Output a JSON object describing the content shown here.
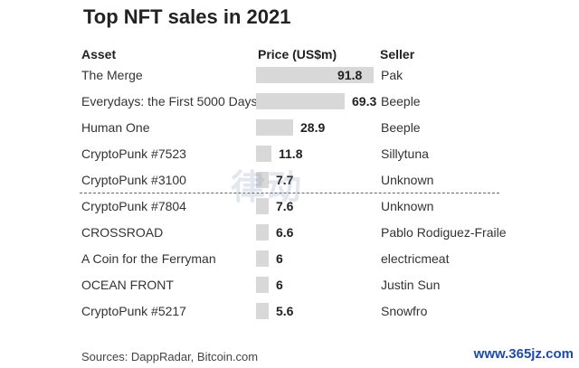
{
  "chart_data": {
    "type": "bar",
    "title": "Top NFT sales in 2021",
    "columns": {
      "asset": "Asset",
      "price": "Price (US$m)",
      "seller": "Seller"
    },
    "categories": [
      "The Merge",
      "Everydays: the First 5000 Days",
      "Human One",
      "CryptoPunk #7523",
      "CryptoPunk #3100",
      "CryptoPunk #7804",
      "CROSSROAD",
      "A Coin for the Ferryman",
      "OCEAN FRONT",
      "CryptoPunk #5217"
    ],
    "values": [
      91.8,
      69.3,
      28.9,
      11.8,
      7.7,
      7.6,
      6.6,
      6,
      6,
      5.6
    ],
    "value_labels": [
      "91.8",
      "69.3",
      "28.9",
      "11.8",
      "7.7",
      "7.6",
      "6.6",
      "6",
      "6",
      "5.6"
    ],
    "sellers": [
      "Pak",
      "Beeple",
      "Beeple",
      "Sillytuna",
      "Unknown",
      "Unknown",
      "Pablo Rodiguez-Fraile",
      "electricmeat",
      "Justin Sun",
      "Snowfro"
    ],
    "source": "Sources: DappRadar, Bitcoin.com",
    "bar_color": "#d8d8d8"
  },
  "watermark": {
    "center": "律动",
    "corner": "www.365jz.com"
  }
}
